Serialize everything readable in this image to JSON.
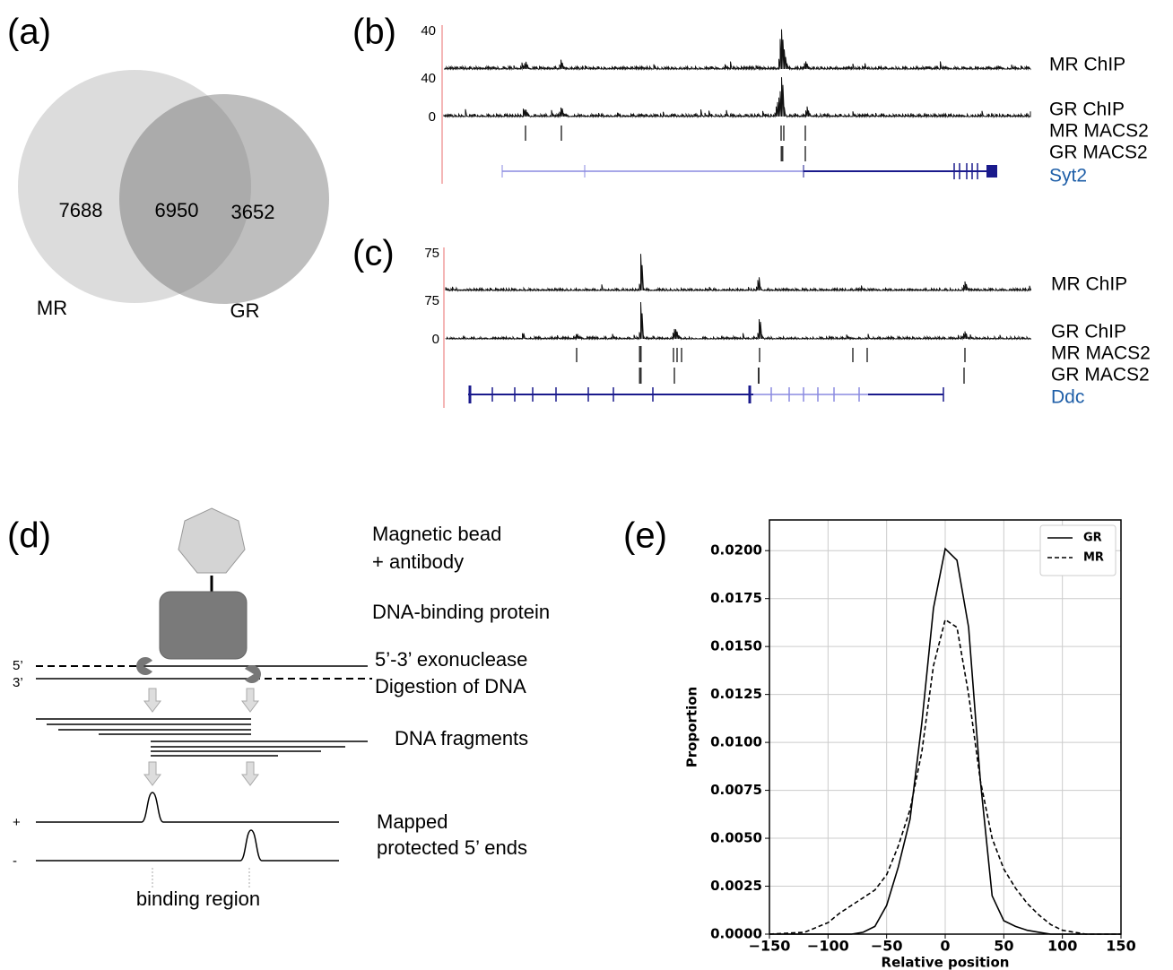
{
  "panel_labels": [
    "(a)",
    "(b)",
    "(c)",
    "(d)",
    "(e)"
  ],
  "venn": {
    "left_only": "7688",
    "overlap": "6950",
    "right_only": "3652",
    "left_label": "MR",
    "right_label": "GR"
  },
  "tracks_b": {
    "scale_labels": [
      "40",
      "40",
      "0"
    ],
    "track_labels": [
      "MR ChIP",
      "GR ChIP",
      "MR MACS2",
      "GR MACS2"
    ],
    "gene": "Syt2"
  },
  "tracks_c": {
    "scale_labels": [
      "75",
      "75",
      "0"
    ],
    "track_labels": [
      "MR ChIP",
      "GR ChIP",
      "MR MACS2",
      "GR MACS2"
    ],
    "gene": "Ddc"
  },
  "diagram": {
    "bead": [
      "Magnetic bead",
      "+ antibody"
    ],
    "protein": "DNA-binding protein",
    "exonuclease": [
      "5’-3’ exonuclease",
      "Digestion of DNA"
    ],
    "fragments": "DNA fragments",
    "mapped": [
      "Mapped",
      "protected 5’ ends"
    ],
    "strand_ends": [
      "5’",
      "3’"
    ],
    "strand_signs": [
      "+",
      "-"
    ],
    "binding": "binding region"
  },
  "chart_data": {
    "type": "line",
    "xlabel": "Relative position",
    "ylabel": "Proportion",
    "x": [
      -150,
      -120,
      -100,
      -90,
      -80,
      -70,
      -60,
      -50,
      -40,
      -30,
      -20,
      -10,
      0,
      10,
      20,
      30,
      40,
      50,
      60,
      70,
      80,
      90,
      100,
      120,
      150
    ],
    "series": [
      {
        "name": "GR",
        "color": "#000000",
        "line_style": "solid",
        "values": [
          0,
          0,
          0,
          0,
          0,
          0.0001,
          0.0004,
          0.0015,
          0.0035,
          0.006,
          0.011,
          0.017,
          0.0201,
          0.0195,
          0.016,
          0.008,
          0.002,
          0.0007,
          0.0004,
          0.0002,
          0.0001,
          0,
          0,
          0,
          0
        ]
      },
      {
        "name": "MR",
        "color": "#000000",
        "line_style": "dashed",
        "values": [
          0,
          0.0001,
          0.0006,
          0.0011,
          0.0015,
          0.0019,
          0.0023,
          0.0031,
          0.0046,
          0.0065,
          0.0095,
          0.014,
          0.0164,
          0.016,
          0.0125,
          0.008,
          0.005,
          0.0034,
          0.0024,
          0.0016,
          0.001,
          0.0005,
          0.0002,
          0,
          0
        ]
      }
    ],
    "xlim": [
      -150,
      150
    ],
    "ylim": [
      0,
      0.0216
    ],
    "xticks": [
      {
        "value": -150,
        "label": "−150"
      },
      {
        "value": -100,
        "label": "−100"
      },
      {
        "value": -50,
        "label": "−50"
      },
      0,
      50,
      100,
      150
    ],
    "yticks": [
      {
        "value": 0,
        "label": "0.0000"
      },
      {
        "value": 0.0025,
        "label": "0.0025"
      },
      {
        "value": 0.005,
        "label": "0.0050"
      },
      {
        "value": 0.0075,
        "label": "0.0075"
      },
      {
        "value": 0.01,
        "label": "0.0100"
      },
      {
        "value": 0.0125,
        "label": "0.0125"
      },
      {
        "value": 0.015,
        "label": "0.0150"
      },
      {
        "value": 0.0175,
        "label": "0.0175"
      },
      {
        "value": 0.02,
        "label": "0.0200"
      }
    ],
    "grid": true,
    "legend": "upper right"
  }
}
